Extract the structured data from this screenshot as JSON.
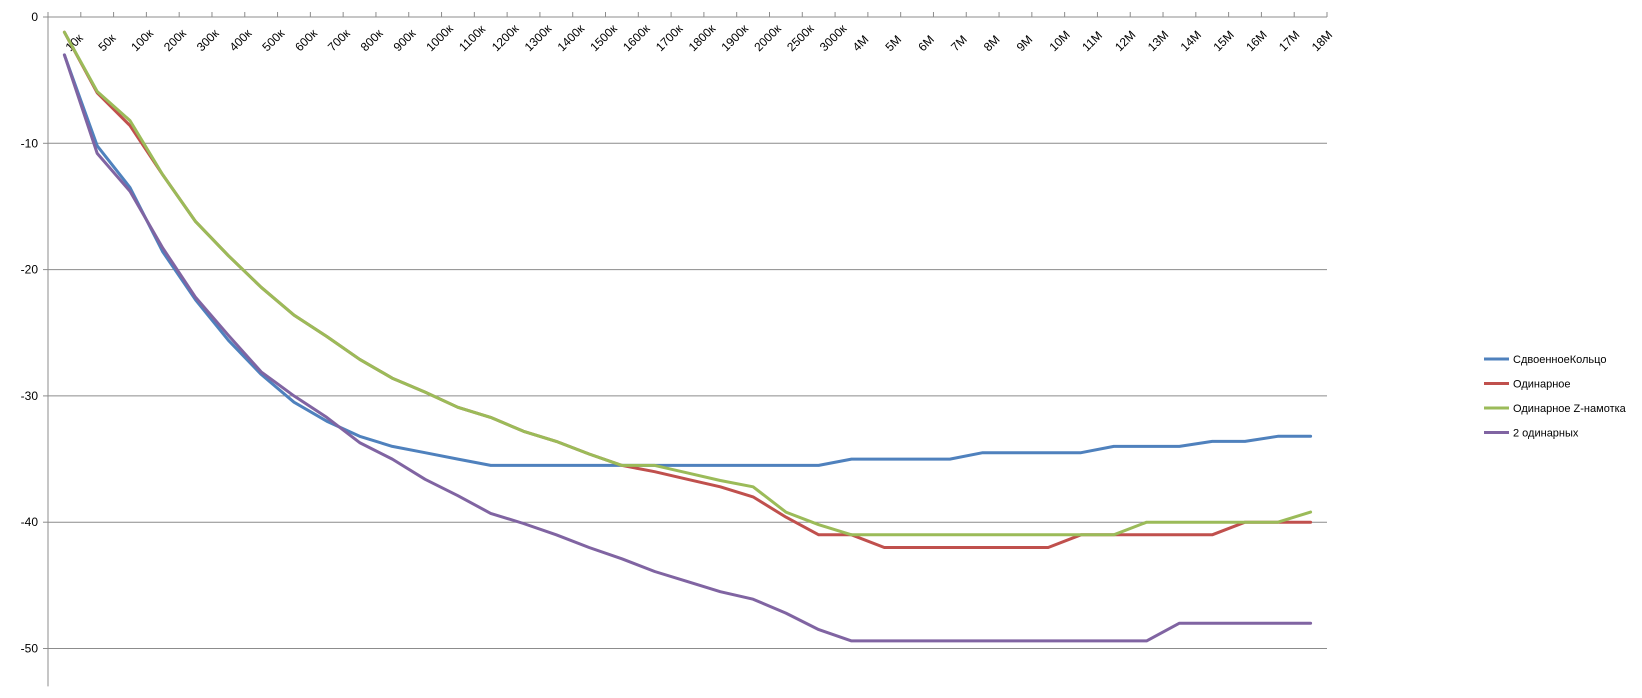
{
  "chart_data": {
    "type": "line",
    "categories": [
      "10к",
      "50к",
      "100к",
      "200к",
      "300к",
      "400к",
      "500к",
      "600к",
      "700к",
      "800к",
      "900к",
      "1000к",
      "1100к",
      "1200к",
      "1300к",
      "1400к",
      "1500к",
      "1600к",
      "1700к",
      "1800к",
      "1900к",
      "2000к",
      "2500к",
      "3000к",
      "4M",
      "5M",
      "6M",
      "7M",
      "8M",
      "9M",
      "10M",
      "11M",
      "12M",
      "13M",
      "14M",
      "15M",
      "16M",
      "17M",
      "18M"
    ],
    "ylim": [
      -53,
      0
    ],
    "yticks": [
      0,
      -10,
      -20,
      -30,
      -40,
      -50
    ],
    "grid": true,
    "legend_position": "right",
    "series": [
      {
        "name": "СдвоенноеКольцо",
        "color": "#4F81BD",
        "values": [
          -3,
          -10.2,
          -13.5,
          -18.6,
          -22.4,
          -25.6,
          -28.3,
          -30.5,
          -32,
          -33.2,
          -34,
          -34.5,
          -35,
          -35.5,
          -35.5,
          -35.5,
          -35.5,
          -35.5,
          -35.5,
          -35.5,
          -35.5,
          -35.5,
          -35.5,
          -35.5,
          -35,
          -35,
          -35,
          -35,
          -34.5,
          -34.5,
          -34.5,
          -34.5,
          -34,
          -34,
          -34,
          -33.6,
          -33.6,
          -33.2,
          -33.2
        ]
      },
      {
        "name": "Одинарное",
        "color": "#C0504D",
        "values": [
          -1.2,
          -6,
          -8.6,
          -12.5,
          -16.2,
          -18.9,
          -21.4,
          -23.6,
          -25.3,
          -27.1,
          -28.6,
          -29.7,
          -30.9,
          -31.7,
          -32.8,
          -33.6,
          -34.6,
          -35.5,
          -36,
          -36.6,
          -37.2,
          -38,
          -39.6,
          -41,
          -41,
          -42,
          -42,
          -42,
          -42,
          -42,
          -42,
          -41,
          -41,
          -41,
          -41,
          -41,
          -40,
          -40,
          -40
        ]
      },
      {
        "name": "Одинарное Z-намотка",
        "color": "#9BBB59",
        "values": [
          -1.2,
          -5.9,
          -8.2,
          -12.5,
          -16.2,
          -18.9,
          -21.4,
          -23.6,
          -25.3,
          -27.1,
          -28.6,
          -29.7,
          -30.9,
          -31.7,
          -32.8,
          -33.6,
          -34.6,
          -35.5,
          -35.5,
          -36.1,
          -36.7,
          -37.2,
          -39.2,
          -40.2,
          -41,
          -41,
          -41,
          -41,
          -41,
          -41,
          -41,
          -41,
          -41,
          -40,
          -40,
          -40,
          -40,
          -40,
          -39.2
        ]
      },
      {
        "name": "2 одинарных",
        "color": "#8064A2",
        "values": [
          -3,
          -10.8,
          -13.8,
          -18.3,
          -22.2,
          -25.2,
          -28.1,
          -30,
          -31.7,
          -33.7,
          -35,
          -36.6,
          -37.9,
          -39.3,
          -40.1,
          -41,
          -42,
          -42.9,
          -43.9,
          -44.7,
          -45.5,
          -46.1,
          -47.2,
          -48.5,
          -49.4,
          -49.4,
          -49.4,
          -49.4,
          -49.4,
          -49.4,
          -49.4,
          -49.4,
          -49.4,
          -49.4,
          -48,
          -48,
          -48,
          -48,
          -48
        ]
      }
    ]
  }
}
